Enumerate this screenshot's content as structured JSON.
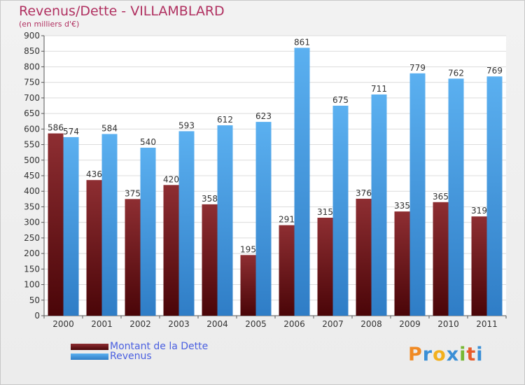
{
  "title": "Revenus/Dette - VILLAMBLARD",
  "subtitle": "(en milliers d'€)",
  "logo": "Proxiti",
  "colors": {
    "debt": "#7a1f24",
    "revenue": "#4da0e6",
    "title": "#b03060",
    "legend_text": "#4a5fe0"
  },
  "chart_data": {
    "type": "bar",
    "categories": [
      "2000",
      "2001",
      "2002",
      "2003",
      "2004",
      "2005",
      "2006",
      "2007",
      "2008",
      "2009",
      "2010",
      "2011"
    ],
    "series": [
      {
        "name": "Montant de la Dette",
        "values": [
          586,
          436,
          375,
          420,
          358,
          195,
          291,
          315,
          376,
          335,
          365,
          319
        ]
      },
      {
        "name": "Revenus",
        "values": [
          574,
          584,
          540,
          593,
          612,
          623,
          861,
          675,
          711,
          779,
          762,
          769
        ]
      }
    ],
    "ylim": [
      0,
      900
    ],
    "ytick_step": 50,
    "grid": true,
    "legend": "bottom-left"
  }
}
